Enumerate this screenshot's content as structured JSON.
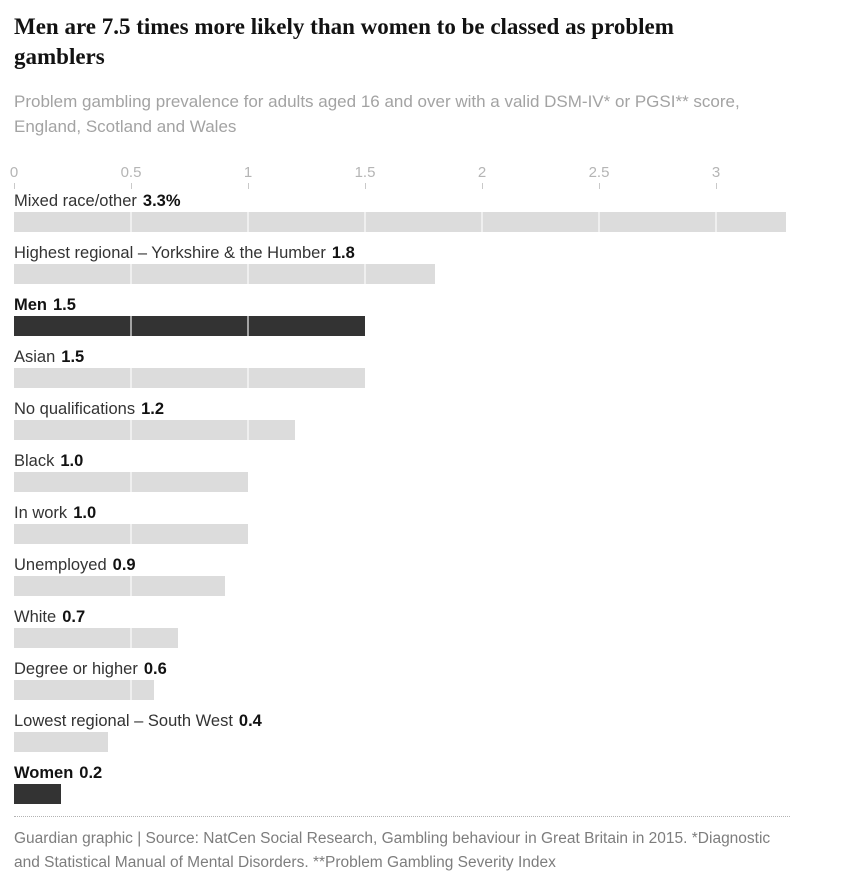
{
  "chart_data": {
    "type": "bar",
    "orientation": "horizontal",
    "title": "Men are 7.5 times more likely than women to be classed as problem gamblers",
    "subtitle": "Problem gambling prevalence for adults aged 16 and over with a valid DSM-IV* or PGSI** score, England, Scotland and Wales",
    "source": "Guardian graphic | Source: NatCen Social Research, Gambling behaviour in Great Britain in 2015. *Diagnostic and Statistical Manual of Mental Disorders. **Problem Gambling Severity Index",
    "xlabel": "",
    "ylabel": "",
    "xlim": [
      0,
      3.32
    ],
    "grid_interval": 0.5,
    "grid": true,
    "legend": "none",
    "axis_ticks": [
      {
        "value": 0,
        "label": "0"
      },
      {
        "value": 0.5,
        "label": "0.5"
      },
      {
        "value": 1,
        "label": "1"
      },
      {
        "value": 1.5,
        "label": "1.5"
      },
      {
        "value": 2,
        "label": "2"
      },
      {
        "value": 2.5,
        "label": "2.5"
      },
      {
        "value": 3,
        "label": "3"
      }
    ],
    "categories": [
      "Mixed race/other",
      "Highest regional – Yorkshire & the Humber",
      "Men",
      "Asian",
      "No qualifications",
      "Black",
      "In work",
      "Unemployed",
      "White",
      "Degree or higher",
      "Lowest regional – South West",
      "Women"
    ],
    "values": [
      3.3,
      1.8,
      1.5,
      1.5,
      1.2,
      1.0,
      1.0,
      0.9,
      0.7,
      0.6,
      0.4,
      0.2
    ],
    "rows": [
      {
        "label": "Mixed race/other",
        "value": 3.3,
        "value_label": "3.3%",
        "highlight": false
      },
      {
        "label": "Highest regional – Yorkshire & the Humber",
        "value": 1.8,
        "value_label": "1.8",
        "highlight": false
      },
      {
        "label": "Men",
        "value": 1.5,
        "value_label": "1.5",
        "highlight": true
      },
      {
        "label": "Asian",
        "value": 1.5,
        "value_label": "1.5",
        "highlight": false
      },
      {
        "label": "No qualifications",
        "value": 1.2,
        "value_label": "1.2",
        "highlight": false
      },
      {
        "label": "Black",
        "value": 1.0,
        "value_label": "1.0",
        "highlight": false
      },
      {
        "label": "In work",
        "value": 1.0,
        "value_label": "1.0",
        "highlight": false
      },
      {
        "label": "Unemployed",
        "value": 0.9,
        "value_label": "0.9",
        "highlight": false
      },
      {
        "label": "White",
        "value": 0.7,
        "value_label": "0.7",
        "highlight": false
      },
      {
        "label": "Degree or higher",
        "value": 0.6,
        "value_label": "0.6",
        "highlight": false
      },
      {
        "label": "Lowest regional – South West",
        "value": 0.4,
        "value_label": "0.4",
        "highlight": false
      },
      {
        "label": "Women",
        "value": 0.2,
        "value_label": "0.2",
        "highlight": true
      }
    ],
    "colors": {
      "background": "#ffffff",
      "bar_default": "#dcdcdc",
      "bar_highlight": "#333333",
      "gridline_on_bar": "rgba(255,255,255,0.55)",
      "title_text": "#121212",
      "subtitle_text": "#a3a3a3",
      "label_text": "#333333",
      "value_text": "#121212",
      "axis_text": "#b5b5b5",
      "source_text": "#7d7d7d"
    }
  }
}
